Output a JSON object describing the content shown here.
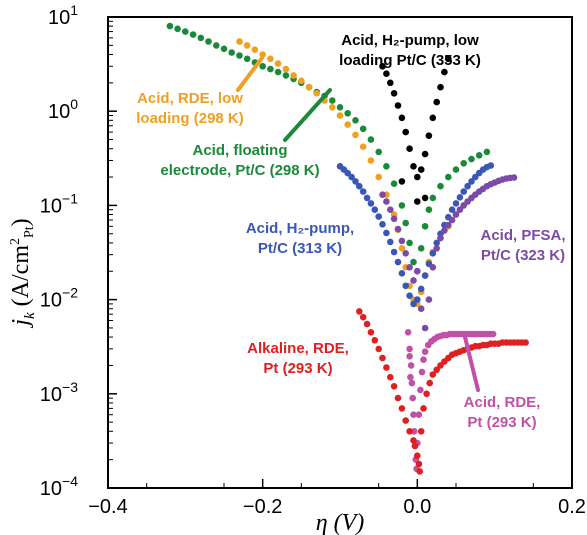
{
  "chart_data": {
    "type": "scatter",
    "title": "",
    "xlabel": "η (V)",
    "ylabel_main": "j",
    "ylabel_sub": "k",
    "ylabel_unit": "(A/cm",
    "ylabel_unit_sup": "2",
    "ylabel_unit_sub": "Pt",
    "ylabel_unit_close": ")",
    "xlim": [
      -0.4,
      0.2
    ],
    "ylim_log10": [
      -4,
      1
    ],
    "yscale": "log",
    "grid": false,
    "legend": "none",
    "x_ticks": [
      {
        "value": -0.4,
        "label": "−0.4"
      },
      {
        "value": -0.2,
        "label": "−0.2"
      },
      {
        "value": 0.0,
        "label": "0.0"
      },
      {
        "value": 0.2,
        "label": "0.2"
      }
    ],
    "y_ticks": [
      {
        "exp": 1,
        "base": "10",
        "sup": "1"
      },
      {
        "exp": 0,
        "base": "10",
        "sup": "0"
      },
      {
        "exp": -1,
        "base": "10",
        "sup": "−1"
      },
      {
        "exp": -2,
        "base": "10",
        "sup": "−2"
      },
      {
        "exp": -3,
        "base": "10",
        "sup": "−3"
      },
      {
        "exp": -4,
        "base": "10",
        "sup": "−4"
      }
    ],
    "series": [
      {
        "color": "#1a8a3a",
        "points": [
          [
            -0.32,
            8.0
          ],
          [
            -0.31,
            7.5
          ],
          [
            -0.3,
            7.0
          ],
          [
            -0.29,
            6.5
          ],
          [
            -0.28,
            6.0
          ],
          [
            -0.27,
            5.5
          ],
          [
            -0.26,
            5.0
          ],
          [
            -0.25,
            4.6
          ],
          [
            -0.24,
            4.2
          ],
          [
            -0.23,
            3.9
          ],
          [
            -0.22,
            3.6
          ],
          [
            -0.21,
            3.3
          ],
          [
            -0.2,
            3.0
          ],
          [
            -0.19,
            2.8
          ],
          [
            -0.18,
            2.6
          ],
          [
            -0.17,
            2.4
          ],
          [
            -0.16,
            2.2
          ],
          [
            -0.15,
            2.0
          ],
          [
            -0.14,
            1.8
          ],
          [
            -0.13,
            1.6
          ],
          [
            -0.12,
            1.45
          ],
          [
            -0.11,
            1.3
          ],
          [
            -0.1,
            1.1
          ],
          [
            -0.09,
            0.95
          ],
          [
            -0.08,
            0.8
          ],
          [
            -0.07,
            0.65
          ],
          [
            -0.06,
            0.5
          ],
          [
            -0.05,
            0.37
          ],
          [
            -0.04,
            0.26
          ],
          [
            -0.03,
            0.17
          ],
          [
            -0.02,
            0.1
          ],
          [
            -0.015,
            0.065
          ],
          [
            -0.01,
            0.04
          ],
          [
            -0.005,
            0.025
          ],
          [
            0.0,
            0.02
          ],
          [
            0.005,
            0.035
          ],
          [
            0.01,
            0.06
          ],
          [
            0.015,
            0.09
          ],
          [
            0.02,
            0.12
          ],
          [
            0.03,
            0.16
          ],
          [
            0.04,
            0.2
          ],
          [
            0.05,
            0.24
          ],
          [
            0.06,
            0.28
          ],
          [
            0.07,
            0.31
          ],
          [
            0.08,
            0.34
          ],
          [
            0.09,
            0.37
          ]
        ]
      },
      {
        "color": "#f0a020",
        "points": [
          [
            -0.23,
            5.5
          ],
          [
            -0.22,
            5.0
          ],
          [
            -0.21,
            4.5
          ],
          [
            -0.2,
            4.0
          ],
          [
            -0.19,
            3.6
          ],
          [
            -0.18,
            3.2
          ],
          [
            -0.17,
            2.8
          ],
          [
            -0.16,
            2.4
          ],
          [
            -0.15,
            2.1
          ],
          [
            -0.14,
            1.8
          ],
          [
            -0.13,
            1.55
          ],
          [
            -0.12,
            1.3
          ],
          [
            -0.11,
            1.1
          ],
          [
            -0.1,
            0.9
          ],
          [
            -0.09,
            0.72
          ],
          [
            -0.08,
            0.56
          ],
          [
            -0.07,
            0.42
          ],
          [
            -0.06,
            0.3
          ],
          [
            -0.05,
            0.2
          ],
          [
            -0.04,
            0.13
          ],
          [
            -0.03,
            0.08
          ],
          [
            -0.025,
            0.055
          ],
          [
            -0.02,
            0.035
          ],
          [
            -0.015,
            0.022
          ],
          [
            -0.01,
            0.014
          ],
          [
            -0.005,
            0.01
          ],
          [
            0.0,
            0.009
          ],
          [
            0.005,
            0.012
          ],
          [
            0.01,
            0.018
          ],
          [
            0.015,
            0.025
          ],
          [
            0.02,
            0.032
          ],
          [
            0.03,
            0.045
          ],
          [
            0.04,
            0.06
          ],
          [
            0.05,
            0.08
          ],
          [
            0.06,
            0.1
          ],
          [
            0.07,
            0.12
          ]
        ]
      },
      {
        "color": "#000000",
        "points": [
          [
            -0.045,
            3.0
          ],
          [
            -0.04,
            2.5
          ],
          [
            -0.035,
            2.0
          ],
          [
            -0.03,
            1.55
          ],
          [
            -0.025,
            1.15
          ],
          [
            -0.02,
            0.85
          ],
          [
            -0.015,
            0.6
          ],
          [
            -0.01,
            0.4
          ],
          [
            -0.005,
            0.26
          ],
          [
            0.0,
            0.2
          ],
          [
            0.005,
            0.24
          ],
          [
            0.01,
            0.35
          ],
          [
            0.015,
            0.55
          ],
          [
            0.02,
            0.85
          ],
          [
            0.025,
            1.25
          ],
          [
            0.03,
            1.8
          ],
          [
            0.035,
            2.6
          ],
          [
            0.04,
            3.6
          ],
          [
            -0.02,
            0.18
          ],
          [
            0.01,
            0.12
          ],
          [
            0.0,
            0.11
          ]
        ]
      },
      {
        "color": "#3a57b8",
        "points": [
          [
            -0.1,
            0.26
          ],
          [
            -0.095,
            0.24
          ],
          [
            -0.09,
            0.22
          ],
          [
            -0.085,
            0.2
          ],
          [
            -0.08,
            0.18
          ],
          [
            -0.075,
            0.16
          ],
          [
            -0.07,
            0.14
          ],
          [
            -0.065,
            0.12
          ],
          [
            -0.06,
            0.105
          ],
          [
            -0.055,
            0.09
          ],
          [
            -0.05,
            0.076
          ],
          [
            -0.045,
            0.063
          ],
          [
            -0.04,
            0.051
          ],
          [
            -0.035,
            0.041
          ],
          [
            -0.03,
            0.032
          ],
          [
            -0.025,
            0.025
          ],
          [
            -0.02,
            0.019
          ],
          [
            -0.015,
            0.014
          ],
          [
            -0.01,
            0.011
          ],
          [
            -0.005,
            0.009
          ],
          [
            0.0,
            0.01
          ],
          [
            0.005,
            0.013
          ],
          [
            0.01,
            0.018
          ],
          [
            0.015,
            0.024
          ],
          [
            0.02,
            0.031
          ],
          [
            0.025,
            0.04
          ],
          [
            0.03,
            0.05
          ],
          [
            0.035,
            0.062
          ],
          [
            0.04,
            0.075
          ],
          [
            0.045,
            0.09
          ],
          [
            0.05,
            0.105
          ],
          [
            0.055,
            0.122
          ],
          [
            0.06,
            0.14
          ],
          [
            0.065,
            0.16
          ],
          [
            0.07,
            0.18
          ],
          [
            0.075,
            0.2
          ],
          [
            0.08,
            0.22
          ],
          [
            0.085,
            0.24
          ],
          [
            0.09,
            0.255
          ],
          [
            0.095,
            0.265
          ]
        ]
      },
      {
        "color": "#7d4aa8",
        "points": [
          [
            -0.045,
            0.13
          ],
          [
            -0.04,
            0.11
          ],
          [
            -0.035,
            0.09
          ],
          [
            -0.03,
            0.072
          ],
          [
            -0.025,
            0.056
          ],
          [
            -0.02,
            0.042
          ],
          [
            -0.015,
            0.031
          ],
          [
            -0.01,
            0.022
          ],
          [
            -0.005,
            0.016
          ],
          [
            0.0,
            0.02
          ],
          [
            0.005,
            0.008
          ],
          [
            0.01,
            0.005
          ],
          [
            0.015,
            0.01
          ],
          [
            0.02,
            0.022
          ],
          [
            0.025,
            0.035
          ],
          [
            0.03,
            0.045
          ],
          [
            0.035,
            0.054
          ],
          [
            0.04,
            0.062
          ],
          [
            0.045,
            0.07
          ],
          [
            0.05,
            0.08
          ],
          [
            0.055,
            0.09
          ],
          [
            0.06,
            0.1
          ],
          [
            0.065,
            0.11
          ],
          [
            0.07,
            0.12
          ],
          [
            0.075,
            0.13
          ],
          [
            0.08,
            0.14
          ],
          [
            0.085,
            0.15
          ],
          [
            0.09,
            0.16
          ],
          [
            0.095,
            0.168
          ],
          [
            0.1,
            0.175
          ],
          [
            0.105,
            0.182
          ],
          [
            0.11,
            0.188
          ],
          [
            0.115,
            0.193
          ],
          [
            0.12,
            0.196
          ],
          [
            0.125,
            0.198
          ]
        ]
      },
      {
        "color": "#c050a8",
        "points": [
          [
            -0.012,
            0.0045
          ],
          [
            -0.01,
            0.003
          ],
          [
            -0.008,
            0.002
          ],
          [
            -0.007,
            0.0013
          ],
          [
            -0.006,
            0.0009
          ],
          [
            -0.005,
            0.0006
          ],
          [
            -0.004,
            0.0004
          ],
          [
            -0.003,
            0.00028
          ],
          [
            -0.002,
            0.0002
          ],
          [
            -0.001,
            0.00016
          ],
          [
            0.0,
            0.0003
          ],
          [
            0.002,
            0.0006
          ],
          [
            0.004,
            0.0011
          ],
          [
            0.006,
            0.0017
          ],
          [
            0.008,
            0.0023
          ],
          [
            0.01,
            0.0028
          ],
          [
            0.014,
            0.0033
          ],
          [
            0.018,
            0.0036
          ],
          [
            0.022,
            0.0038
          ],
          [
            0.026,
            0.004
          ],
          [
            0.03,
            0.0041
          ],
          [
            0.034,
            0.0042
          ],
          [
            0.038,
            0.0042
          ],
          [
            0.042,
            0.0043
          ],
          [
            0.046,
            0.0043
          ],
          [
            0.05,
            0.0043
          ],
          [
            0.054,
            0.0043
          ],
          [
            0.058,
            0.0043
          ],
          [
            0.062,
            0.0043
          ],
          [
            0.066,
            0.0043
          ],
          [
            0.07,
            0.0043
          ],
          [
            0.074,
            0.0043
          ],
          [
            0.078,
            0.0043
          ],
          [
            0.082,
            0.0043
          ],
          [
            0.086,
            0.0043
          ],
          [
            0.09,
            0.0043
          ],
          [
            0.094,
            0.0043
          ],
          [
            0.098,
            0.0043
          ],
          [
            -0.01,
            0.0025
          ],
          [
            -0.009,
            0.0015
          ]
        ]
      },
      {
        "color": "#e02020",
        "points": [
          [
            -0.075,
            0.0075
          ],
          [
            -0.07,
            0.0065
          ],
          [
            -0.065,
            0.0055
          ],
          [
            -0.06,
            0.0045
          ],
          [
            -0.055,
            0.0037
          ],
          [
            -0.05,
            0.003
          ],
          [
            -0.045,
            0.0024
          ],
          [
            -0.04,
            0.0019
          ],
          [
            -0.035,
            0.0015
          ],
          [
            -0.03,
            0.0012
          ],
          [
            -0.025,
            0.0009
          ],
          [
            -0.02,
            0.0007
          ],
          [
            -0.015,
            0.00052
          ],
          [
            -0.01,
            0.0004
          ],
          [
            -0.005,
            0.00032
          ],
          [
            -0.003,
            0.00028
          ],
          [
            0.0,
            0.00022
          ],
          [
            0.002,
            0.00018
          ],
          [
            0.003,
            0.00015
          ],
          [
            0.005,
            0.0004
          ],
          [
            0.008,
            0.0007
          ],
          [
            0.012,
            0.001
          ],
          [
            0.016,
            0.0013
          ],
          [
            0.02,
            0.0016
          ],
          [
            0.025,
            0.0018
          ],
          [
            0.03,
            0.002
          ],
          [
            0.035,
            0.0022
          ],
          [
            0.04,
            0.0024
          ],
          [
            0.045,
            0.0026
          ],
          [
            0.05,
            0.0027
          ],
          [
            0.055,
            0.0028
          ],
          [
            0.06,
            0.0029
          ],
          [
            0.065,
            0.003
          ],
          [
            0.07,
            0.0031
          ],
          [
            0.075,
            0.0032
          ],
          [
            0.08,
            0.0032
          ],
          [
            0.085,
            0.0033
          ],
          [
            0.09,
            0.0033
          ],
          [
            0.095,
            0.0034
          ],
          [
            0.1,
            0.0034
          ],
          [
            0.105,
            0.0034
          ],
          [
            0.11,
            0.0035
          ],
          [
            0.115,
            0.0035
          ],
          [
            0.12,
            0.0035
          ],
          [
            0.125,
            0.0035
          ],
          [
            0.13,
            0.0035
          ],
          [
            0.135,
            0.0035
          ],
          [
            0.14,
            0.0035
          ]
        ]
      }
    ],
    "annotations": [
      {
        "color": "#000000",
        "lines": [
          "Acid, H₂-pump, low",
          "loading Pt/C (353 K)"
        ]
      },
      {
        "color": "#f0a020",
        "lines": [
          "Acid, RDE, low",
          "loading (298 K)"
        ]
      },
      {
        "color": "#1a8a3a",
        "lines": [
          "Acid, floating",
          "electrode, Pt/C (298 K)"
        ]
      },
      {
        "color": "#3a57b8",
        "lines": [
          "Acid, H₂-pump,",
          "Pt/C (313 K)"
        ]
      },
      {
        "color": "#7d4aa8",
        "lines": [
          "Acid, PFSA,",
          "Pt/C (323 K)"
        ]
      },
      {
        "color": "#e02020",
        "lines": [
          "Alkaline, RDE,",
          "Pt (293 K)"
        ]
      },
      {
        "color": "#c050a8",
        "lines": [
          "Acid, RDE,",
          "Pt (293 K)"
        ]
      }
    ]
  }
}
